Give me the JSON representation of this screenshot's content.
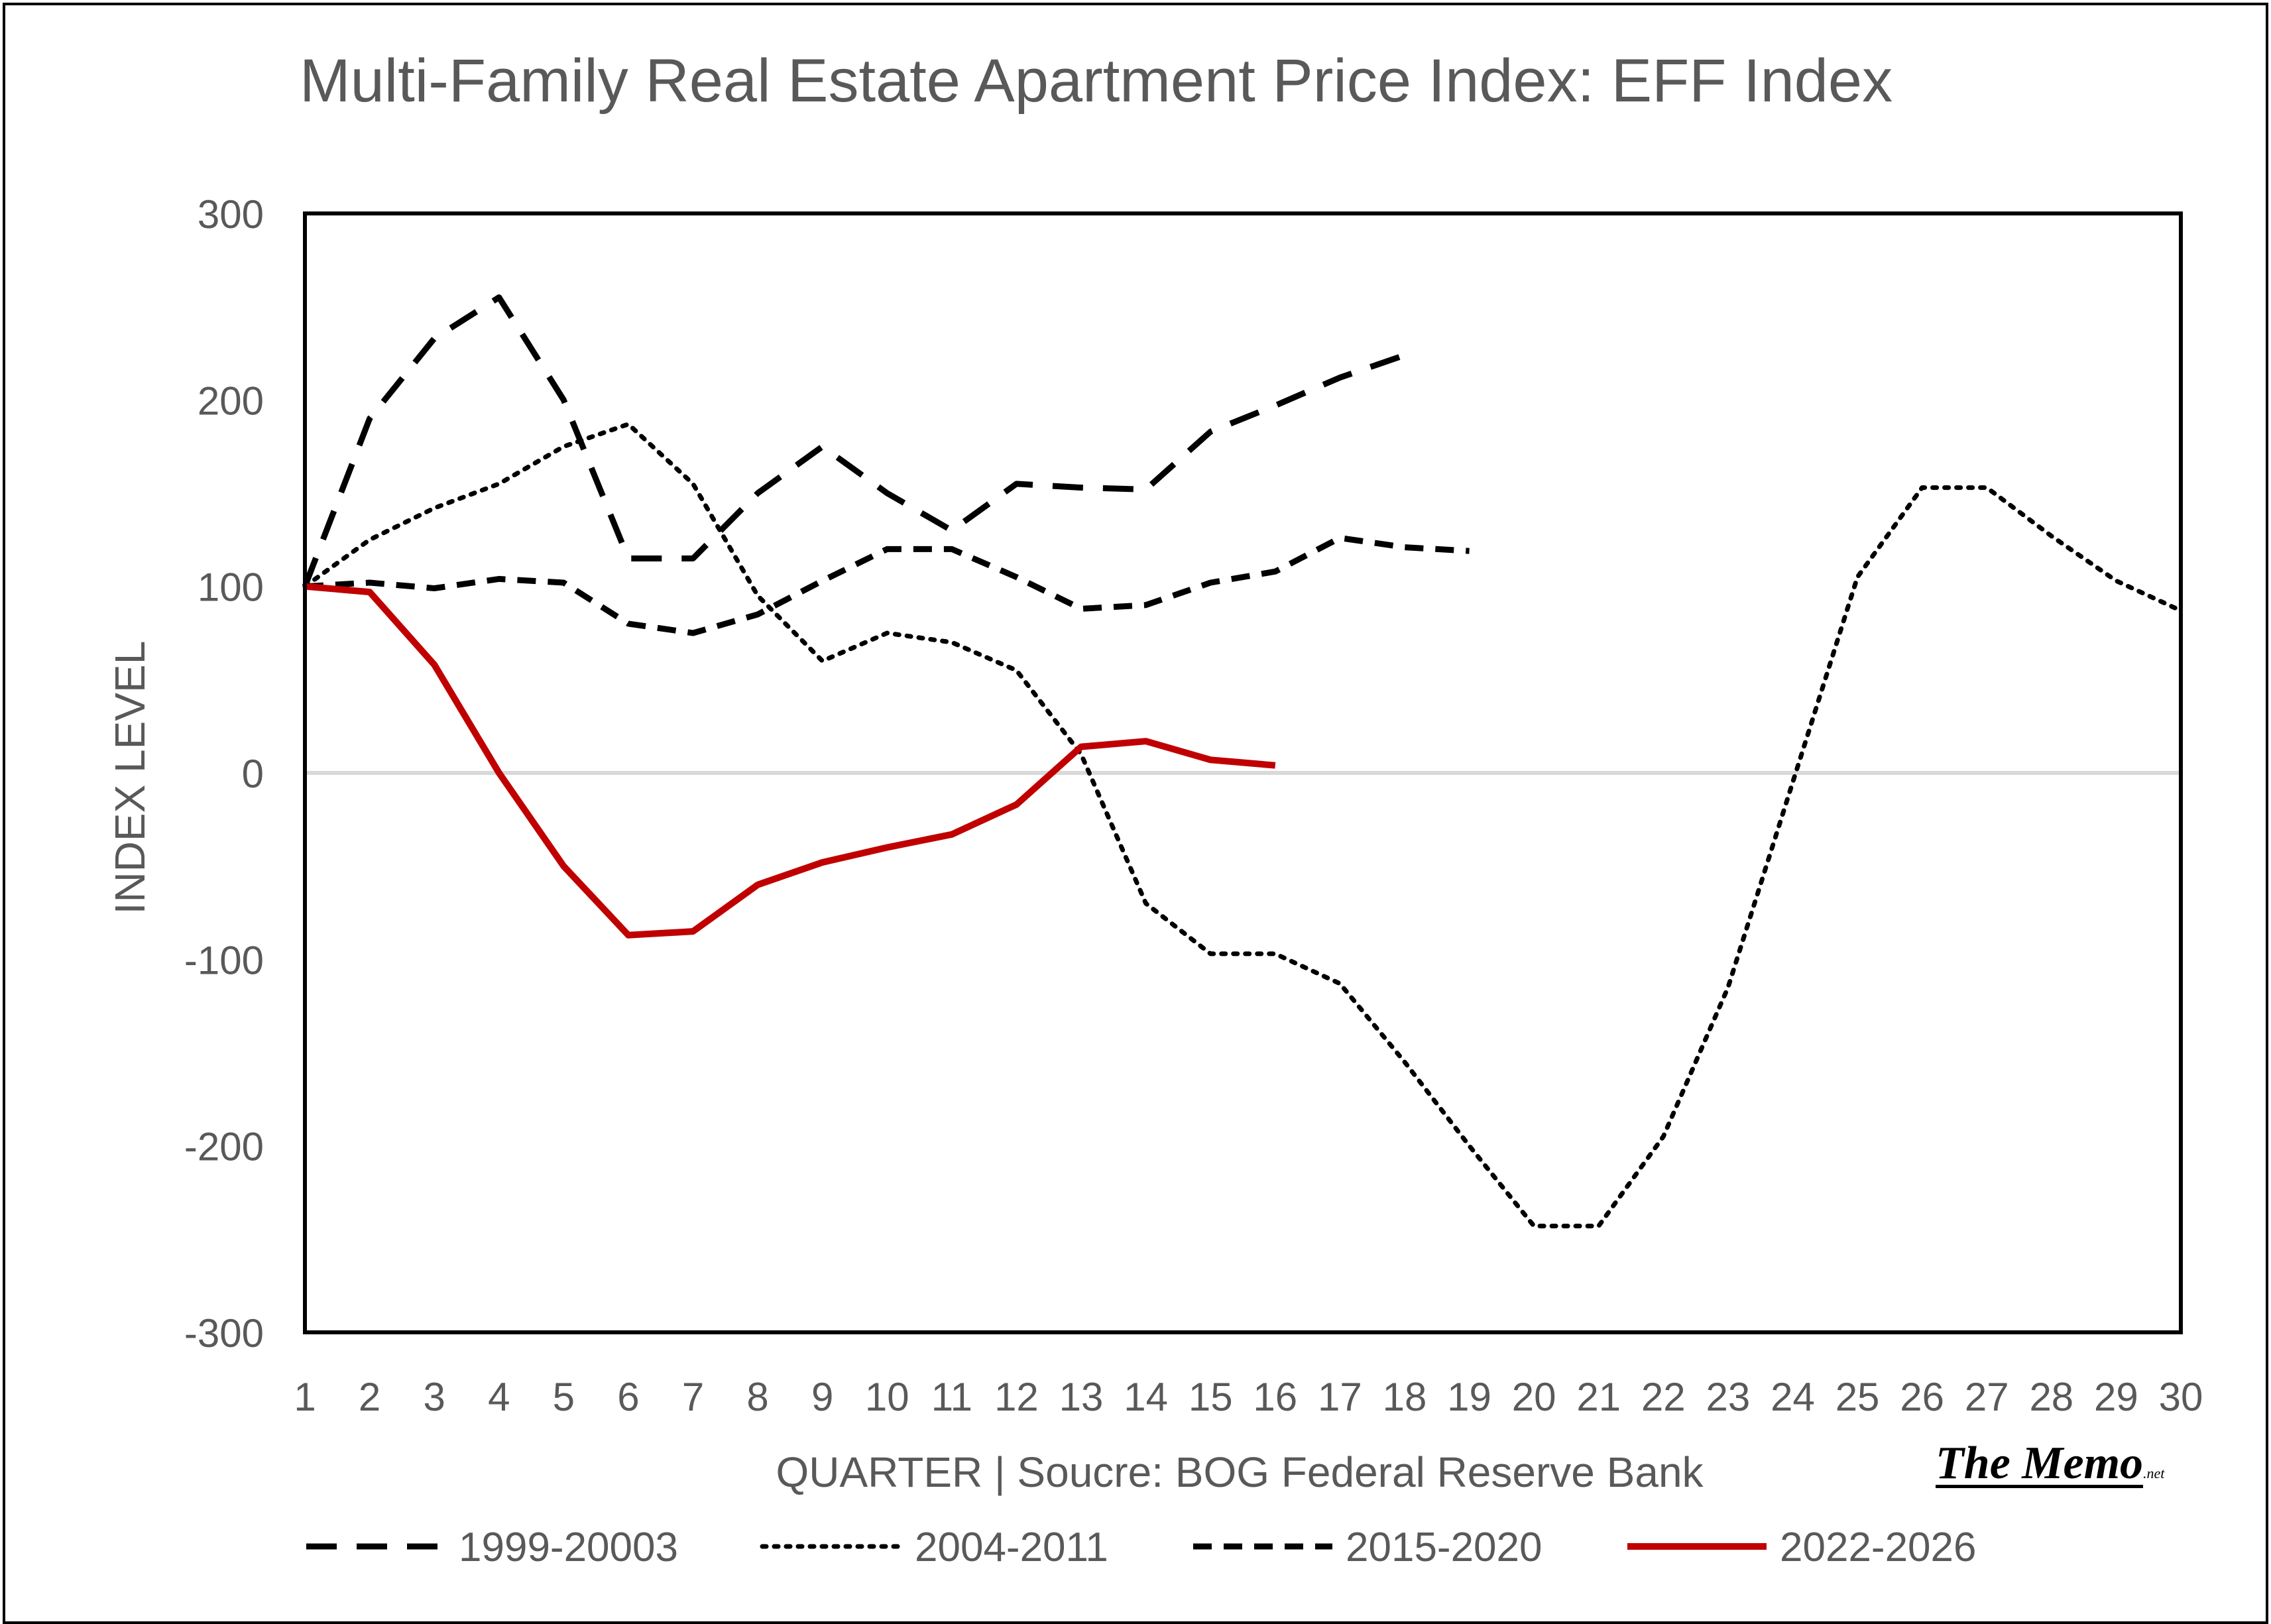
{
  "chart_data": {
    "type": "line",
    "title": "Multi-Family Real Estate Apartment Price Index: EFF Index",
    "xlabel": "QUARTER | Soucre: BOG Federal Reserve Bank",
    "ylabel": "INDEX LEVEL",
    "ylim": [
      -300,
      300
    ],
    "yticks": [
      300,
      200,
      100,
      0,
      -100,
      -200,
      -300
    ],
    "yticks_labels": [
      "300",
      "200",
      "100",
      "0",
      "-100",
      "-200",
      "-300"
    ],
    "xlim": [
      1,
      30
    ],
    "x_tick_labels": [
      "1",
      "2",
      "3",
      "4",
      "5",
      "6",
      "7",
      "8",
      "9",
      "10",
      "11",
      "12",
      "13",
      "14",
      "15",
      "16",
      "17",
      "18",
      "19",
      "20",
      "21",
      "22",
      "23",
      "24",
      "25",
      "26",
      "27",
      "28",
      "29",
      "30"
    ],
    "grid": false,
    "zero_line": true,
    "legend_position": "bottom",
    "series": [
      {
        "name": "1999-20003",
        "style": "dashed-long",
        "color": "#000000",
        "x": [
          1,
          2,
          3,
          4,
          5,
          6,
          7,
          8,
          9,
          10,
          11,
          12,
          13,
          14,
          15,
          16,
          17,
          18
        ],
        "y": [
          100,
          190,
          233,
          255,
          200,
          115,
          115,
          150,
          175,
          150,
          130,
          155,
          153,
          152,
          183,
          197,
          212,
          224
        ]
      },
      {
        "name": "2004-2011",
        "style": "dotted",
        "color": "#000000",
        "x": [
          1,
          2,
          3,
          4,
          5,
          6,
          7,
          8,
          9,
          10,
          11,
          12,
          13,
          14,
          15,
          16,
          17,
          18,
          19,
          20,
          21,
          22,
          23,
          24,
          25,
          26,
          27,
          28,
          29,
          30
        ],
        "y": [
          100,
          125,
          142,
          155,
          175,
          187,
          155,
          95,
          60,
          75,
          70,
          55,
          10,
          -70,
          -97,
          -97,
          -113,
          -155,
          -200,
          -243,
          -243,
          -195,
          -115,
          -5,
          105,
          153,
          153,
          127,
          103,
          87
        ]
      },
      {
        "name": "2015-2020",
        "style": "dashed",
        "color": "#000000",
        "x": [
          1,
          2,
          3,
          4,
          5,
          6,
          7,
          8,
          9,
          10,
          11,
          12,
          13,
          14,
          15,
          16,
          17,
          18,
          19
        ],
        "y": [
          100,
          102,
          99,
          104,
          102,
          80,
          75,
          85,
          103,
          120,
          120,
          105,
          88,
          90,
          102,
          108,
          126,
          121,
          119
        ]
      },
      {
        "name": "2022-2026",
        "style": "solid",
        "color": "#C00000",
        "x": [
          1,
          2,
          3,
          4,
          5,
          6,
          7,
          8,
          9,
          10,
          11,
          12,
          13,
          14,
          15,
          16
        ],
        "y": [
          100,
          97,
          58,
          0,
          -50,
          -87,
          -85,
          -60,
          -48,
          -40,
          -33,
          -17,
          14,
          17,
          7,
          4
        ]
      }
    ]
  },
  "watermark": {
    "main": "The Memo",
    "sub": ".net"
  }
}
